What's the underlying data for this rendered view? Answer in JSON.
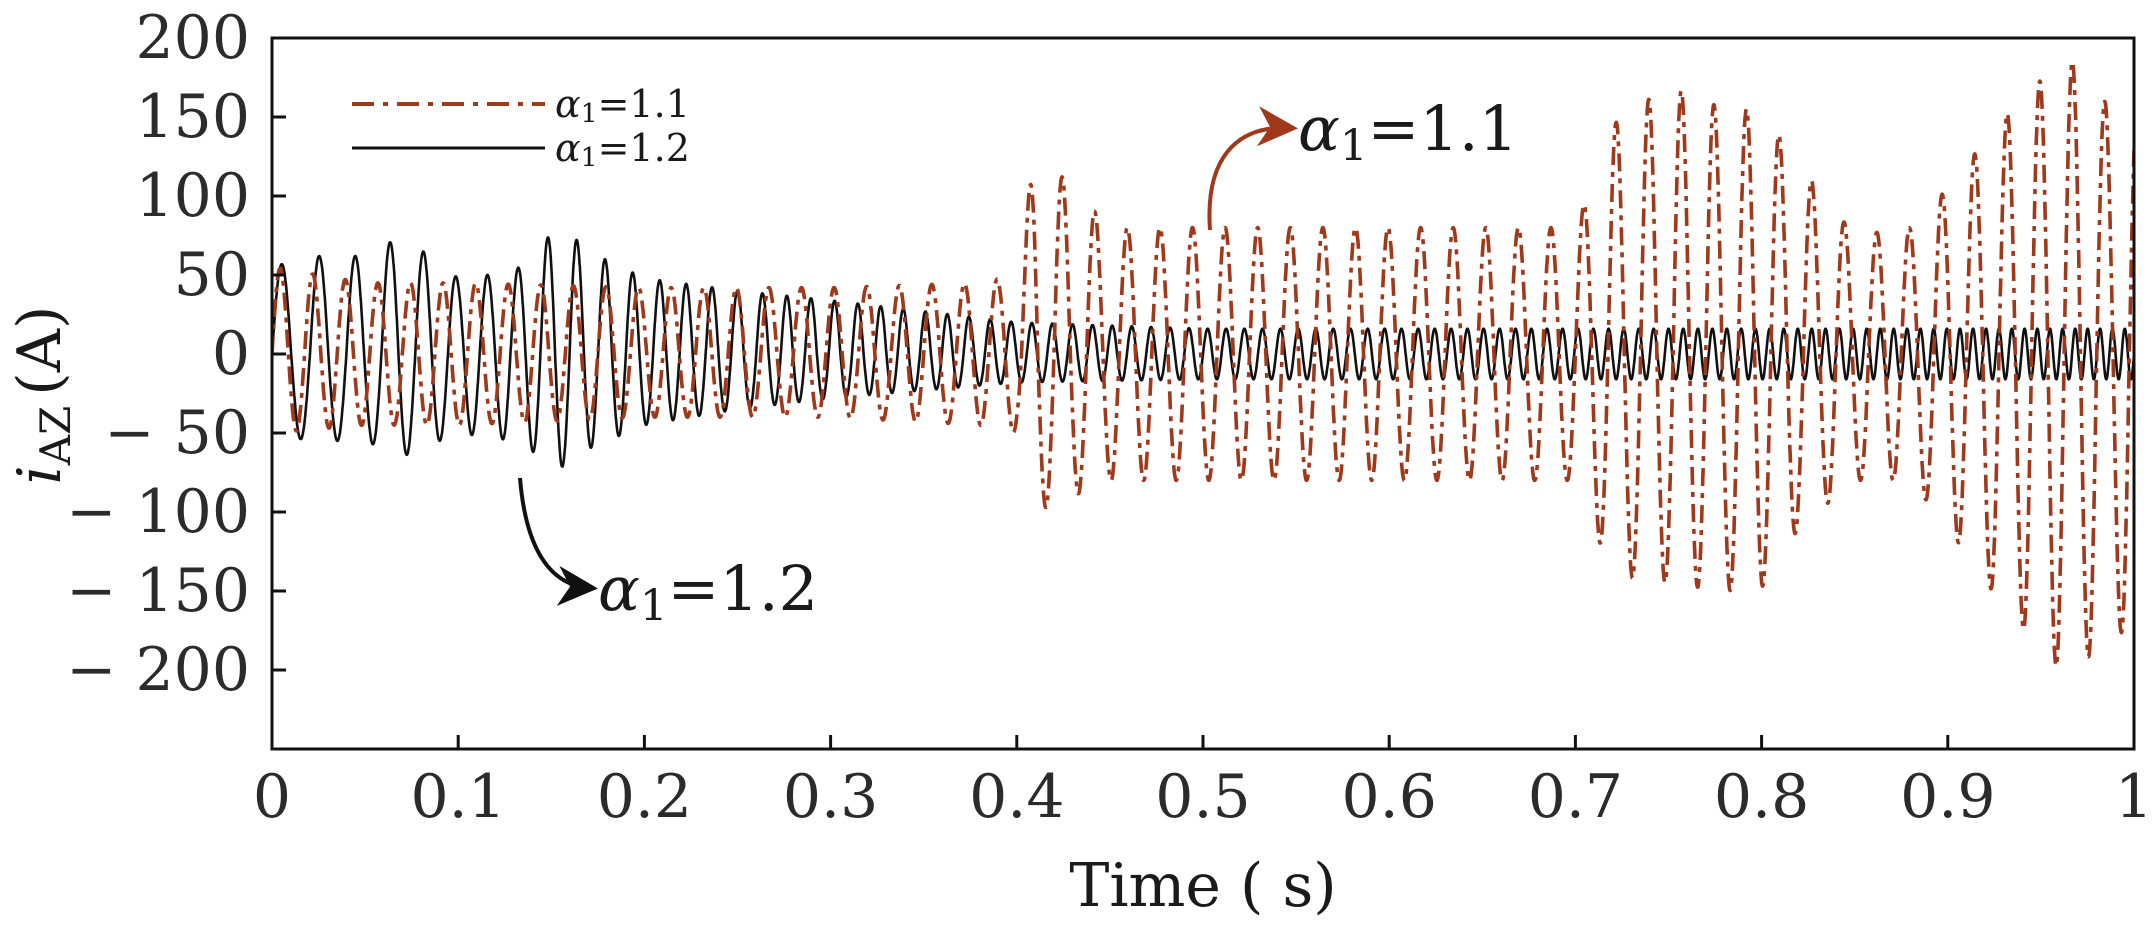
{
  "chart_data": {
    "type": "line",
    "title": "",
    "xlabel": "Time ( s)",
    "ylabel": {
      "symbol": "i",
      "subscript": "AZ",
      "unit": "(A)"
    },
    "xlim": [
      0,
      1
    ],
    "ylim": [
      -250,
      200
    ],
    "xticks": [
      0,
      0.1,
      0.2,
      0.3,
      0.4,
      0.5,
      0.6,
      0.7,
      0.8,
      0.9,
      1
    ],
    "xtick_labels": [
      "0",
      "0.1",
      "0.2",
      "0.3",
      "0.4",
      "0.5",
      "0.6",
      "0.7",
      "0.8",
      "0.9",
      "1"
    ],
    "yticks": [
      200,
      150,
      100,
      50,
      0,
      -50,
      -100,
      -150,
      -200
    ],
    "ytick_labels": [
      "200",
      "150",
      "100",
      "50",
      "0",
      "− 50",
      "− 100",
      "− 150",
      "− 200"
    ],
    "grid": false,
    "legend_position": "top-left",
    "series": [
      {
        "name": "α1=1.1",
        "legend_label": {
          "symbol": "α",
          "subscript": "1",
          "value": "=1.1"
        },
        "color": "#A0381A",
        "style": "dash-dot",
        "envelope_t": [
          0,
          0.05,
          0.1,
          0.2,
          0.3,
          0.38,
          0.4,
          0.41,
          0.45,
          0.5,
          0.6,
          0.65,
          0.7,
          0.72,
          0.75,
          0.78,
          0.8,
          0.82,
          0.85,
          0.88,
          0.9,
          0.93,
          0.96,
          0.97,
          0.99,
          1.0
        ],
        "envelope_pos": [
          55,
          45,
          45,
          42,
          42,
          45,
          50,
          130,
          80,
          80,
          80,
          80,
          80,
          145,
          170,
          155,
          155,
          120,
          75,
          80,
          105,
          150,
          185,
          185,
          150,
          165
        ],
        "envelope_neg": [
          -50,
          -45,
          -45,
          -40,
          -40,
          -45,
          -50,
          -100,
          -80,
          -80,
          -80,
          -80,
          -80,
          -140,
          -145,
          -150,
          -148,
          -110,
          -80,
          -80,
          -110,
          -160,
          -200,
          -200,
          -170,
          -190
        ],
        "period_s": 0.0175
      },
      {
        "name": "α1=1.2",
        "legend_label": {
          "symbol": "α",
          "subscript": "1",
          "value": "=1.2"
        },
        "color": "#111111",
        "style": "solid",
        "envelope_t": [
          0,
          0.02,
          0.05,
          0.07,
          0.1,
          0.13,
          0.155,
          0.17,
          0.2,
          0.25,
          0.3,
          0.35,
          0.4,
          0.5,
          0.7,
          0.9,
          1.0
        ],
        "envelope_pos": [
          55,
          62,
          62,
          75,
          48,
          52,
          82,
          65,
          48,
          40,
          34,
          27,
          20,
          16,
          16,
          16,
          16
        ],
        "envelope_neg": [
          -50,
          -55,
          -55,
          -65,
          -50,
          -55,
          -72,
          -60,
          -45,
          -35,
          -28,
          -23,
          -18,
          -16,
          -16,
          -16,
          -16
        ],
        "freq_start_hz": 48,
        "freq_end_hz": 152
      }
    ],
    "annotations": [
      {
        "name": "annotation-alpha-1-1",
        "symbol": "α",
        "subscript": "1",
        "value": "=1.1",
        "points_to": {
          "x": 0.505,
          "y": 75
        }
      },
      {
        "name": "annotation-alpha-1-2",
        "symbol": "α",
        "subscript": "1",
        "value": "=1.2",
        "points_to": {
          "x": 0.135,
          "y": -55
        }
      }
    ]
  }
}
